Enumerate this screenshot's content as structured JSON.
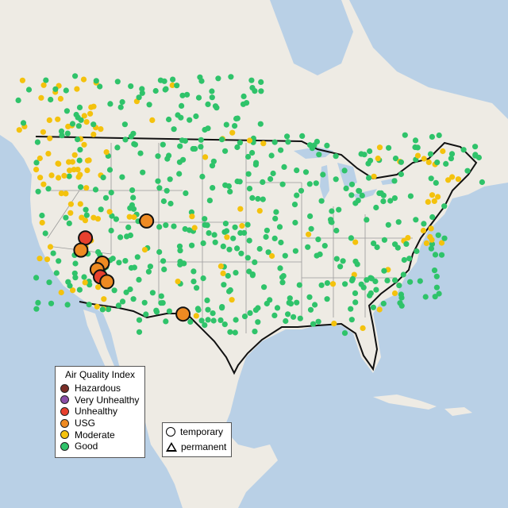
{
  "legend_aqi": {
    "title": "Air Quality Index",
    "items": [
      {
        "label": "Hazardous",
        "color": "#7b2d26"
      },
      {
        "label": "Very Unhealthy",
        "color": "#8a4fa8"
      },
      {
        "label": "Unhealthy",
        "color": "#e8402e"
      },
      {
        "label": "USG",
        "color": "#ee8a22"
      },
      {
        "label": "Moderate",
        "color": "#f4c20d"
      },
      {
        "label": "Good",
        "color": "#2fc36a"
      }
    ]
  },
  "legend_type": {
    "temporary": "temporary",
    "permanent": "permanent"
  },
  "colors": {
    "water": "#b9d0e6",
    "land": "#eeebe4",
    "border": "#111111",
    "state": "#9a9a9a"
  },
  "large_monitors": [
    {
      "category": "Unhealthy",
      "lat": 40.8,
      "lon": -123.9
    },
    {
      "category": "USG",
      "lat": 42.9,
      "lon": -114.5
    },
    {
      "category": "USG",
      "lat": 39.3,
      "lon": -124.6
    },
    {
      "category": "USG",
      "lat": 37.7,
      "lon": -121.3
    },
    {
      "category": "USG",
      "lat": 36.9,
      "lon": -122.1
    },
    {
      "category": "Unhealthy",
      "lat": 36.0,
      "lon": -121.6
    },
    {
      "category": "USG",
      "lat": 35.4,
      "lon": -120.6
    },
    {
      "category": "USG",
      "lat": 31.4,
      "lon": -108.9
    }
  ]
}
